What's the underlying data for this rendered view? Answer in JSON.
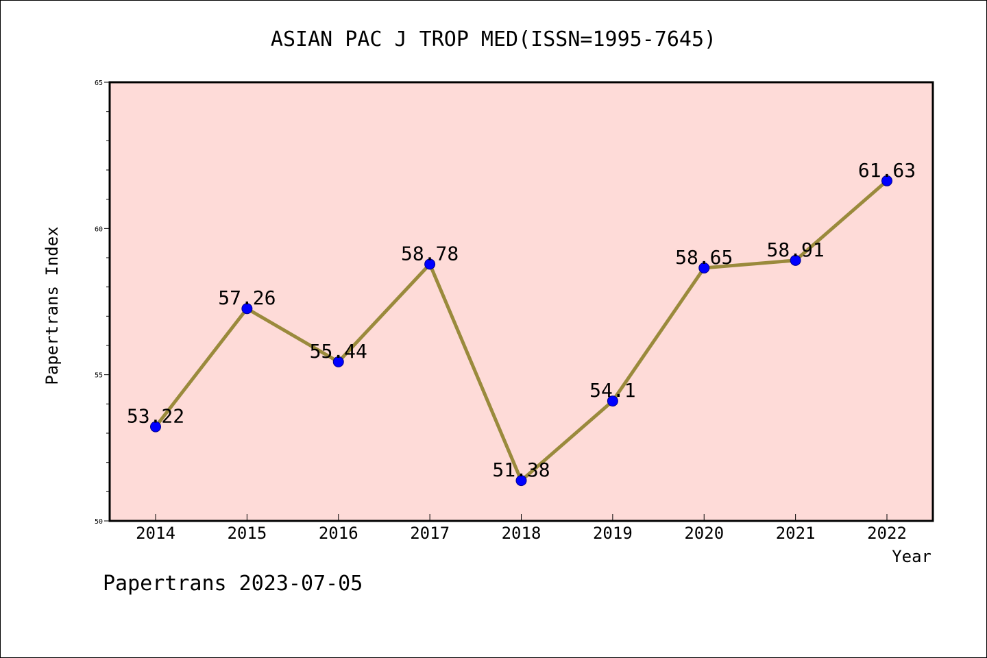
{
  "chart_data": {
    "type": "line",
    "title": "ASIAN PAC J TROP MED(ISSN=1995-7645)",
    "xlabel": "Year",
    "ylabel": "Papertrans Index",
    "categories": [
      "2014",
      "2015",
      "2016",
      "2017",
      "2018",
      "2019",
      "2020",
      "2021",
      "2022"
    ],
    "values": [
      53.22,
      57.26,
      55.44,
      58.78,
      51.38,
      54.1,
      58.65,
      58.91,
      61.63
    ],
    "data_labels": [
      "53.22",
      "57.26",
      "55.44",
      "58.78",
      "51.38",
      "54.1",
      "58.65",
      "58.91",
      "61.63"
    ],
    "ylim": [
      50,
      65
    ],
    "yticks": [
      "50",
      "55",
      "60",
      "65"
    ],
    "grid": false,
    "colors": {
      "plot_background": "#fedbd8",
      "line": "#9a8a3c",
      "marker": "#0000ff",
      "marker_edge": "#00008b"
    }
  },
  "footer": {
    "text": "Papertrans 2023-07-05"
  }
}
